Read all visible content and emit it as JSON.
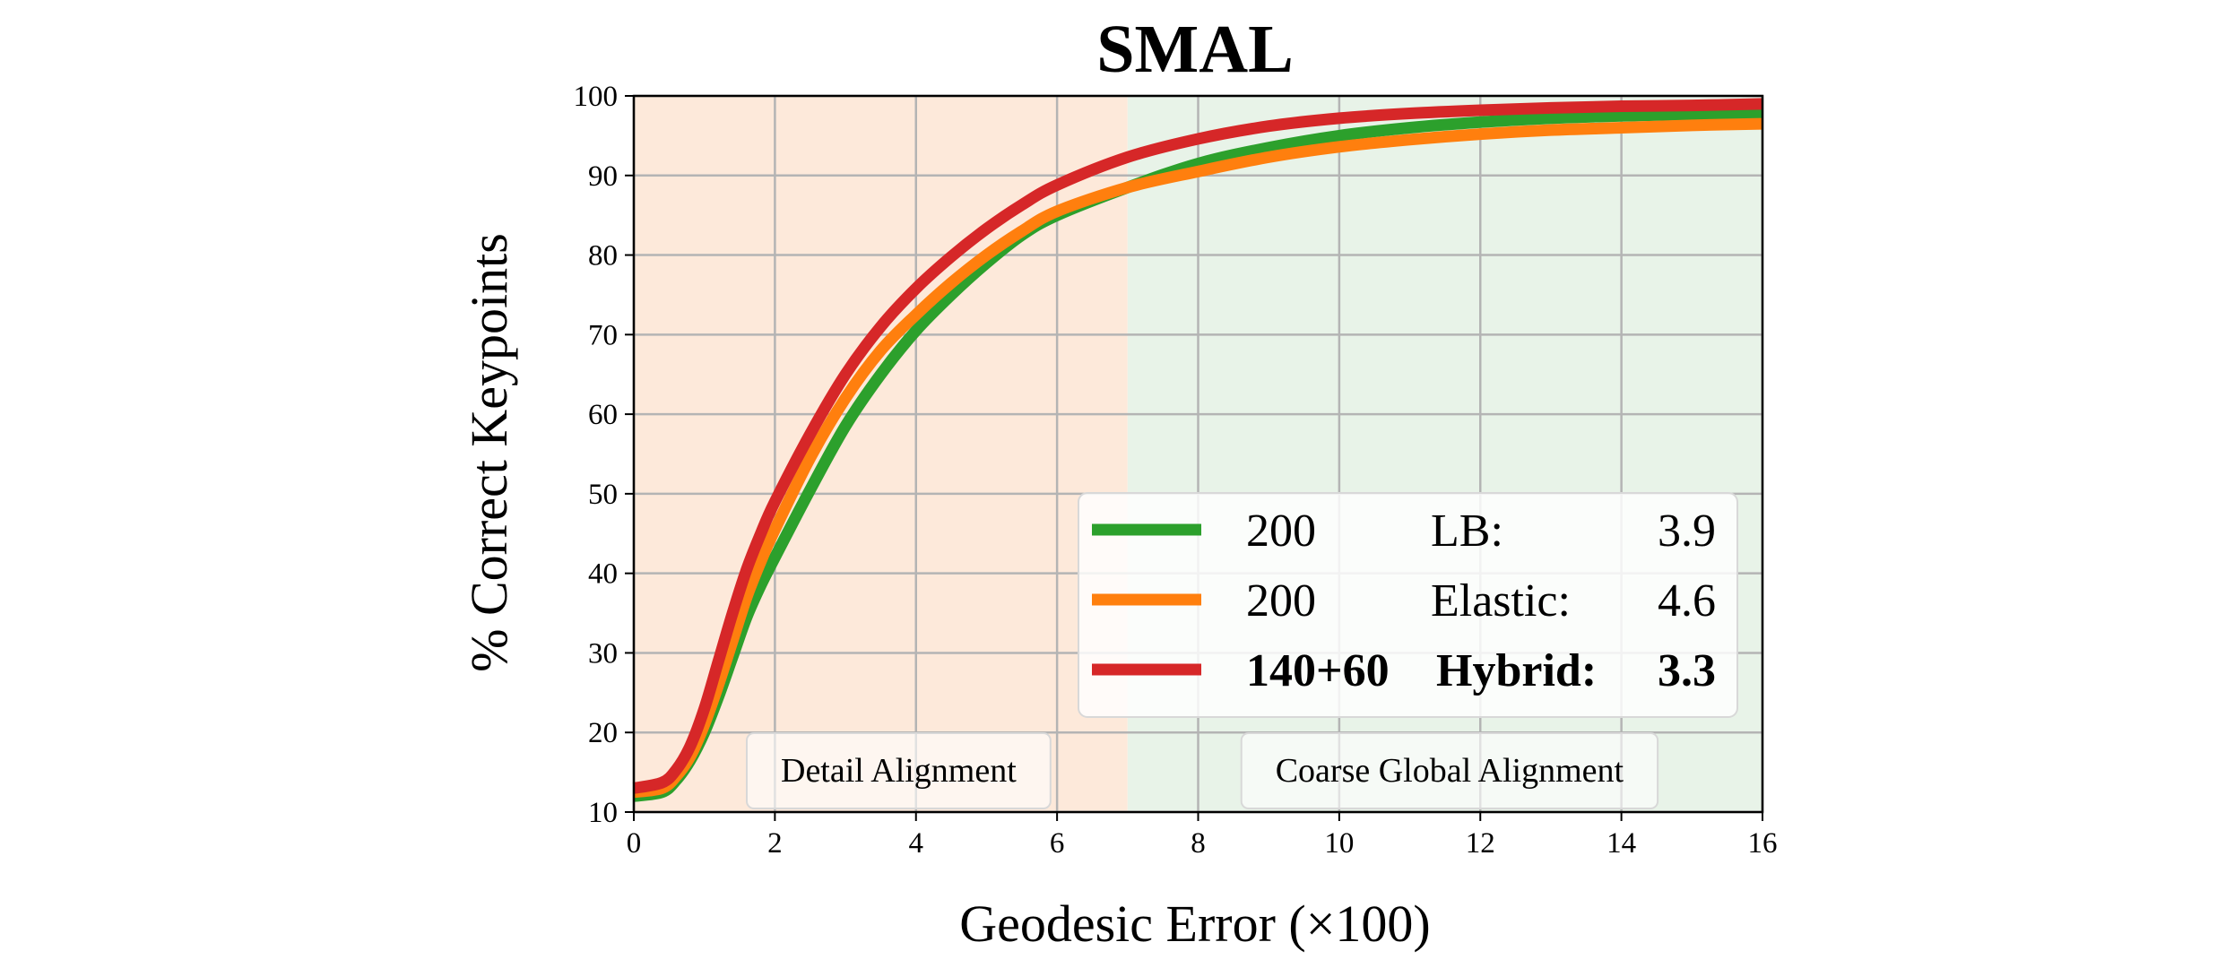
{
  "chart_data": {
    "type": "line",
    "title": "SMAL",
    "xlabel": "Geodesic Error (×100)",
    "ylabel": "% Correct Keypoints",
    "xlim": [
      0,
      16
    ],
    "ylim": [
      10,
      100
    ],
    "xticks": [
      0,
      2,
      4,
      6,
      8,
      10,
      12,
      14,
      16
    ],
    "yticks": [
      10,
      20,
      30,
      40,
      50,
      60,
      70,
      80,
      90,
      100
    ],
    "grid": true,
    "legend_position": "lower-right",
    "regions": [
      {
        "label": "Detail Alignment",
        "x_start": 0,
        "x_end": 7,
        "color": "#fde9da"
      },
      {
        "label": "Coarse Global Alignment",
        "x_start": 7,
        "x_end": 16,
        "color": "#e8f3e8"
      }
    ],
    "x": [
      0,
      0.4,
      0.6,
      0.8,
      1.0,
      1.2,
      1.4,
      1.6,
      1.8,
      2.0,
      2.5,
      3.0,
      3.5,
      4.0,
      4.5,
      5.0,
      5.5,
      6.0,
      7.0,
      8.0,
      9.0,
      10.0,
      11.0,
      12.0,
      13.0,
      14.0,
      15.0,
      16.0
    ],
    "series": [
      {
        "name": "200",
        "method": "LB:",
        "score": "3.9",
        "bold": false,
        "color": "#2ca02c",
        "values": [
          12,
          12.5,
          14,
          16.5,
          20,
          24.5,
          29.5,
          34.5,
          38.5,
          42,
          50.5,
          58.5,
          65,
          70.5,
          75,
          79,
          82.5,
          85,
          88.5,
          91.5,
          93.5,
          95,
          96,
          96.7,
          97.2,
          97.5,
          97.7,
          97.8
        ]
      },
      {
        "name": "200",
        "method": "Elastic:",
        "score": "4.6",
        "bold": false,
        "color": "#ff7f0e",
        "values": [
          12.5,
          13,
          14.5,
          17,
          21,
          26,
          31.5,
          37,
          41.5,
          45.5,
          54.5,
          62,
          68,
          72.5,
          76.5,
          80,
          83,
          85.5,
          88.5,
          90.5,
          92.3,
          93.6,
          94.5,
          95.2,
          95.7,
          96,
          96.3,
          96.5
        ]
      },
      {
        "name": "140+60",
        "method": "Hybrid:",
        "score": "3.3",
        "bold": true,
        "color": "#d62728",
        "values": [
          13,
          13.7,
          15.3,
          18.3,
          23,
          29,
          35,
          40.5,
          45,
          49,
          57.5,
          65,
          71,
          75.8,
          79.8,
          83.3,
          86.3,
          88.8,
          92.3,
          94.6,
          96.2,
          97.2,
          97.8,
          98.2,
          98.5,
          98.7,
          98.8,
          99
        ]
      }
    ]
  }
}
